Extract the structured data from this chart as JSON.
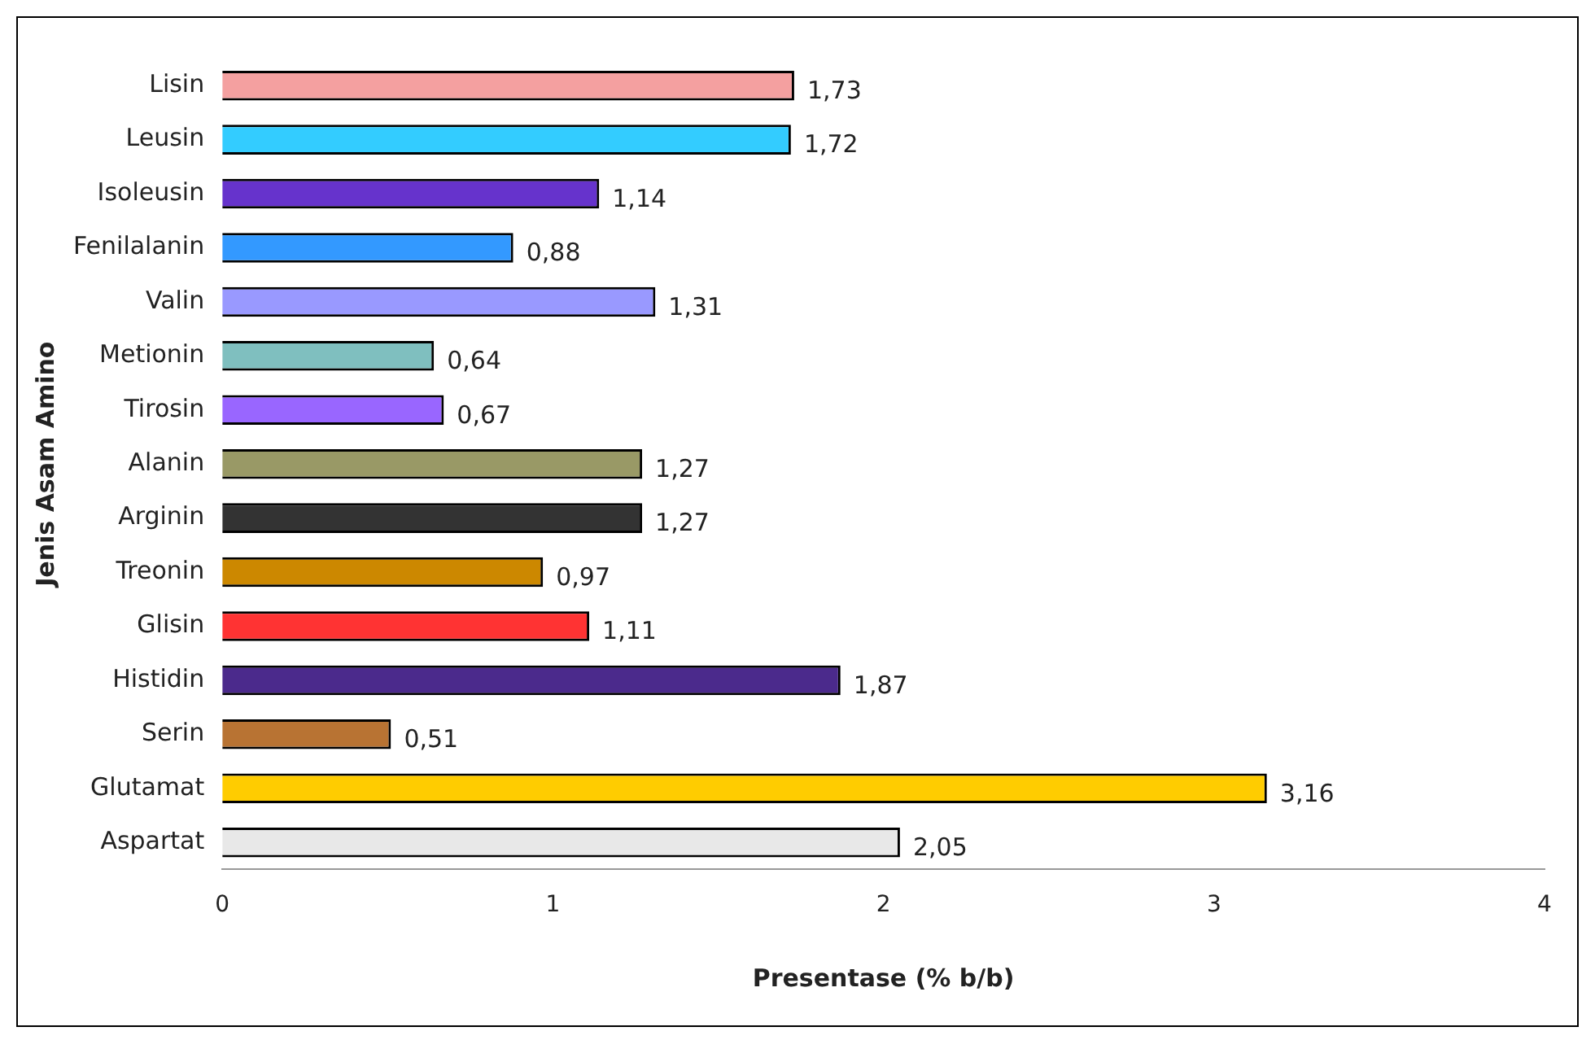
{
  "chart_data": {
    "type": "bar",
    "orientation": "horizontal",
    "xlabel": "Presentase (% b/b)",
    "ylabel": "Jenis Asam Amino",
    "categories": [
      "Lisin",
      "Leusin",
      "Isoleusin",
      "Fenilalanin",
      "Valin",
      "Metionin",
      "Tirosin",
      "Alanin",
      "Arginin",
      "Treonin",
      "Glisin",
      "Histidin",
      "Serin",
      "Glutamat",
      "Aspartat"
    ],
    "values": [
      1.73,
      1.72,
      1.14,
      0.88,
      1.31,
      0.64,
      0.67,
      1.27,
      1.27,
      0.97,
      1.11,
      1.87,
      0.51,
      3.16,
      2.05
    ],
    "value_labels": [
      "1,73",
      "1,72",
      "1,14",
      "0,88",
      "1,31",
      "0,64",
      "0,67",
      "1,27",
      "1,27",
      "0,97",
      "1,11",
      "1,87",
      "0,51",
      "3,16",
      "2,05"
    ],
    "colors": [
      "#f4a0a0",
      "#33ccff",
      "#6633cc",
      "#3399ff",
      "#9999ff",
      "#7fbfbf",
      "#9966ff",
      "#999966",
      "#333333",
      "#cc8800",
      "#ff3333",
      "#4b2a8c",
      "#b87333",
      "#ffcc00",
      "#e8e8e8"
    ],
    "xlim": [
      0,
      4
    ],
    "xticks": [
      0,
      1,
      2,
      3,
      4
    ],
    "grid": false,
    "legend": false
  }
}
